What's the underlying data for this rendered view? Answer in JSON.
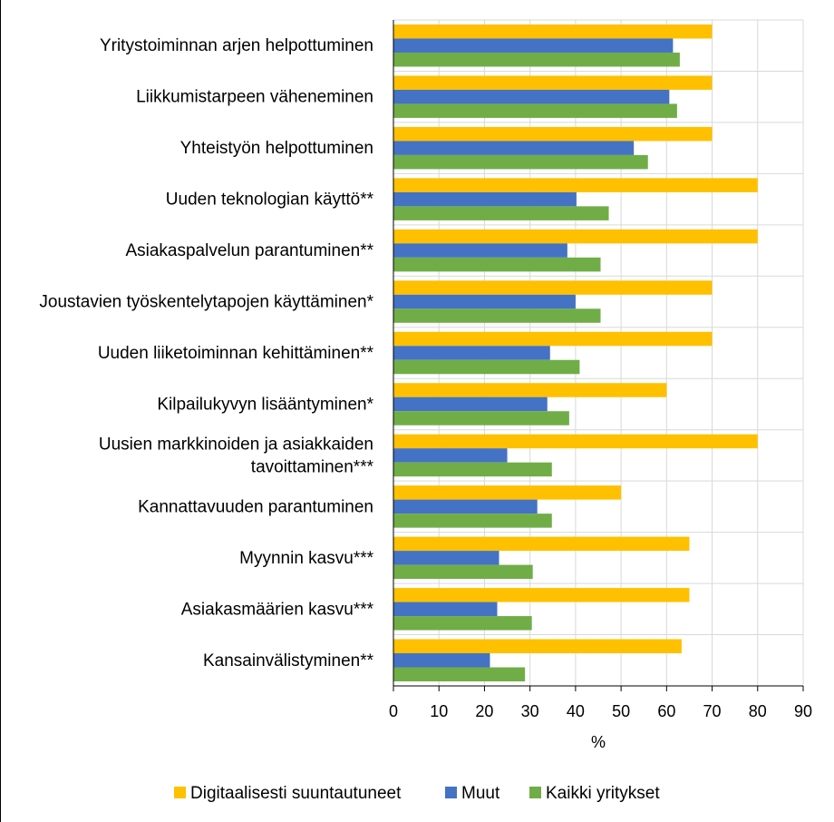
{
  "chart_data": {
    "type": "bar",
    "orientation": "horizontal",
    "categories": [
      "Yritystoiminnan arjen helpottuminen",
      "Liikkumistarpeen väheneminen",
      "Yhteistyön helpottuminen",
      "Uuden teknologian käyttö**",
      "Asiakaspalvelun parantuminen**",
      "Joustavien työskentelytapojen käyttäminen*",
      "Uuden liiketoiminnan kehittäminen**",
      "Kilpailukyvyn lisääntyminen*",
      "Uusien markkinoiden ja asiakkaiden tavoittaminen***",
      "Kannattavuuden parantuminen",
      "Myynnin kasvu***",
      "Asiakasmäärien kasvu***",
      "Kansainvälistyminen**"
    ],
    "category_lines": [
      [
        "Yritystoiminnan arjen helpottuminen"
      ],
      [
        "Liikkumistarpeen väheneminen"
      ],
      [
        "Yhteistyön helpottuminen"
      ],
      [
        "Uuden teknologian käyttö**"
      ],
      [
        "Asiakaspalvelun parantuminen**"
      ],
      [
        "Joustavien työskentelytapojen käyttäminen*"
      ],
      [
        "Uuden liiketoiminnan kehittäminen**"
      ],
      [
        "Kilpailukyvyn lisääntyminen*"
      ],
      [
        "Uusien markkinoiden ja asiakkaiden",
        "tavoittaminen***"
      ],
      [
        "Kannattavuuden parantuminen"
      ],
      [
        "Myynnin kasvu***"
      ],
      [
        "Asiakasmäärien kasvu***"
      ],
      [
        "Kansainvälistyminen**"
      ]
    ],
    "series": [
      {
        "name": "Digitaalisesti suuntautuneet",
        "color": "#FFC000",
        "values": [
          70,
          70,
          70,
          80,
          80,
          70,
          70,
          60,
          80,
          50,
          65,
          65,
          63.3
        ]
      },
      {
        "name": "Muut",
        "color": "#4472C4",
        "values": [
          61.4,
          60.6,
          52.8,
          40.2,
          38.2,
          40,
          34.4,
          33.8,
          25,
          31.6,
          23.2,
          22.8,
          21.2
        ]
      },
      {
        "name": "Kaikki yritykset",
        "color": "#70AD47",
        "values": [
          62.9,
          62.3,
          55.9,
          47.3,
          45.5,
          45.5,
          40.9,
          38.6,
          34.8,
          34.8,
          30.6,
          30.4,
          28.9
        ]
      }
    ],
    "x_ticks": [
      "0",
      "10",
      "20",
      "30",
      "40",
      "50",
      "60",
      "70",
      "80",
      "90"
    ],
    "xlim": [
      0,
      90
    ],
    "xlabel": "%",
    "ylabel": "",
    "title": "",
    "grid": true,
    "legend_position": "bottom"
  }
}
